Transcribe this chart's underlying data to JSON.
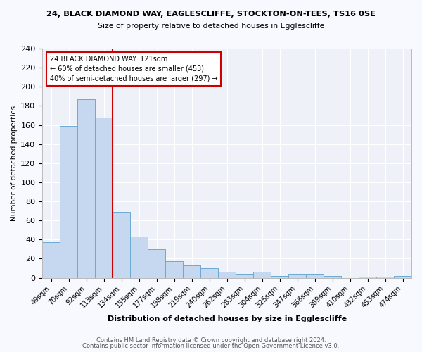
{
  "title1": "24, BLACK DIAMOND WAY, EAGLESCLIFFE, STOCKTON-ON-TEES, TS16 0SE",
  "title2": "Size of property relative to detached houses in Egglescliffe",
  "xlabel": "Distribution of detached houses by size in Egglescliffe",
  "ylabel": "Number of detached properties",
  "footer1": "Contains HM Land Registry data © Crown copyright and database right 2024.",
  "footer2": "Contains public sector information licensed under the Open Government Licence v3.0.",
  "categories": [
    "49sqm",
    "70sqm",
    "92sqm",
    "113sqm",
    "134sqm",
    "155sqm",
    "177sqm",
    "198sqm",
    "219sqm",
    "240sqm",
    "262sqm",
    "283sqm",
    "304sqm",
    "325sqm",
    "347sqm",
    "368sqm",
    "389sqm",
    "410sqm",
    "432sqm",
    "453sqm",
    "474sqm"
  ],
  "values": [
    37,
    159,
    187,
    168,
    69,
    43,
    30,
    17,
    13,
    10,
    6,
    4,
    6,
    2,
    4,
    4,
    2,
    0,
    1,
    1,
    2
  ],
  "bar_color": "#c5d8f0",
  "bar_edge_color": "#6aaad4",
  "vline_x": 3.5,
  "vline_color": "#cc0000",
  "annotation_line1": "24 BLACK DIAMOND WAY: 121sqm",
  "annotation_line2": "← 60% of detached houses are smaller (453)",
  "annotation_line3": "40% of semi-detached houses are larger (297) →",
  "annotation_box_color": "white",
  "annotation_box_edge": "#cc0000",
  "ylim": [
    0,
    240
  ],
  "yticks": [
    0,
    20,
    40,
    60,
    80,
    100,
    120,
    140,
    160,
    180,
    200,
    220,
    240
  ],
  "bg_color": "#f0f4fa",
  "plot_bg": "#eef2f8",
  "fig_bg": "#f8f8ff"
}
